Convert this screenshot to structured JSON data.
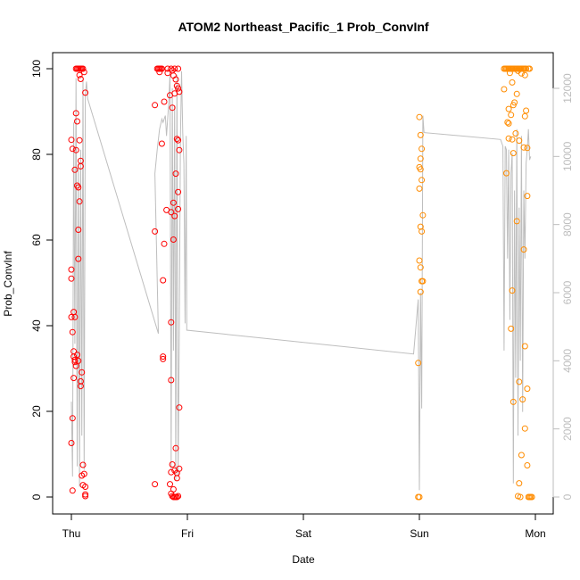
{
  "chart_data": {
    "type": "scatter",
    "title": "ATOM2 Northeast_Pacific_1 Prob_ConvInf",
    "xlabel": "Date",
    "ylabel": "Prob_ConvInf",
    "x_ticks": [
      "Thu",
      "Fri",
      "Sat",
      "Sun",
      "Mon"
    ],
    "ylim": [
      0,
      100
    ],
    "yticks": [
      0,
      20,
      40,
      60,
      80,
      100
    ],
    "y2lim": [
      0,
      12500
    ],
    "y2ticks": [
      0,
      2000,
      4000,
      6000,
      8000,
      10000,
      12000
    ],
    "grid": false,
    "colors": {
      "red": "#ff0000",
      "orange": "#ff8c00",
      "gray_line": "#bebebe"
    },
    "series": [
      {
        "color": "red",
        "points": [
          [
            0.0,
            83.4
          ],
          [
            0.01,
            81.3
          ],
          [
            0.0,
            53.1
          ],
          [
            0.0,
            51.0
          ],
          [
            0.0,
            42.0
          ],
          [
            0.01,
            38.5
          ],
          [
            0.02,
            43.2
          ],
          [
            0.03,
            42.0
          ],
          [
            0.02,
            34.0
          ],
          [
            0.02,
            32.8
          ],
          [
            0.03,
            32.0
          ],
          [
            0.03,
            31.5
          ],
          [
            0.04,
            30.6
          ],
          [
            0.05,
            33.2
          ],
          [
            0.06,
            31.8
          ],
          [
            0.02,
            27.8
          ],
          [
            0.01,
            18.4
          ],
          [
            0.0,
            12.6
          ],
          [
            0.01,
            1.5
          ],
          [
            0.03,
            76.4
          ],
          [
            0.04,
            81.0
          ],
          [
            0.04,
            89.6
          ],
          [
            0.05,
            87.7
          ],
          [
            0.05,
            72.7
          ],
          [
            0.06,
            72.3
          ],
          [
            0.06,
            62.4
          ],
          [
            0.06,
            55.6
          ],
          [
            0.07,
            69.0
          ],
          [
            0.07,
            83.3
          ],
          [
            0.08,
            77.2
          ],
          [
            0.08,
            78.5
          ],
          [
            0.09,
            29.1
          ],
          [
            0.08,
            27.0
          ],
          [
            0.08,
            25.9
          ],
          [
            0.1,
            7.5
          ],
          [
            0.11,
            5.4
          ],
          [
            0.09,
            5.0
          ],
          [
            0.1,
            2.8
          ],
          [
            0.12,
            2.4
          ],
          [
            0.12,
            0.6
          ],
          [
            0.12,
            0.2
          ],
          [
            0.04,
            100
          ],
          [
            0.05,
            100
          ],
          [
            0.06,
            100
          ],
          [
            0.07,
            100
          ],
          [
            0.08,
            100
          ],
          [
            0.09,
            100
          ],
          [
            0.1,
            100
          ],
          [
            0.07,
            98.5
          ],
          [
            0.08,
            97.6
          ],
          [
            0.11,
            99.2
          ],
          [
            0.12,
            94.4
          ],
          [
            0.74,
            100
          ],
          [
            0.75,
            100
          ],
          [
            0.76,
            100
          ],
          [
            0.77,
            100
          ],
          [
            0.78,
            100
          ],
          [
            0.83,
            100
          ],
          [
            0.86,
            100
          ],
          [
            0.89,
            100
          ],
          [
            0.92,
            100
          ],
          [
            0.76,
            99.2
          ],
          [
            0.83,
            99.0
          ],
          [
            0.87,
            99.6
          ],
          [
            0.88,
            98.4
          ],
          [
            0.9,
            97.5
          ],
          [
            0.91,
            96.0
          ],
          [
            0.92,
            95.4
          ],
          [
            0.93,
            94.6
          ],
          [
            0.85,
            93.8
          ],
          [
            0.89,
            94.2
          ],
          [
            0.72,
            91.5
          ],
          [
            0.8,
            92.3
          ],
          [
            0.87,
            90.9
          ],
          [
            0.78,
            82.5
          ],
          [
            0.91,
            83.6
          ],
          [
            0.92,
            83.3
          ],
          [
            0.93,
            81.0
          ],
          [
            0.9,
            75.5
          ],
          [
            0.92,
            71.2
          ],
          [
            0.88,
            68.7
          ],
          [
            0.86,
            66.5
          ],
          [
            0.82,
            67.0
          ],
          [
            0.89,
            65.6
          ],
          [
            0.92,
            67.2
          ],
          [
            0.72,
            62.0
          ],
          [
            0.8,
            59.1
          ],
          [
            0.88,
            60.1
          ],
          [
            0.79,
            50.6
          ],
          [
            0.86,
            40.8
          ],
          [
            0.79,
            32.8
          ],
          [
            0.79,
            32.2
          ],
          [
            0.86,
            27.3
          ],
          [
            0.93,
            20.9
          ],
          [
            0.9,
            11.4
          ],
          [
            0.87,
            7.6
          ],
          [
            0.93,
            6.6
          ],
          [
            0.89,
            6.2
          ],
          [
            0.86,
            5.8
          ],
          [
            0.91,
            5.6
          ],
          [
            0.91,
            4.4
          ],
          [
            0.72,
            3.0
          ],
          [
            0.85,
            3.0
          ],
          [
            0.88,
            1.8
          ],
          [
            0.86,
            0.8
          ],
          [
            0.87,
            0.2
          ],
          [
            0.88,
            0.0
          ],
          [
            0.89,
            0.0
          ],
          [
            0.9,
            0.0
          ],
          [
            0.91,
            0.0
          ],
          [
            0.92,
            0.2
          ]
        ]
      },
      {
        "color": "orange",
        "points": [
          [
            3.0,
            88.7
          ],
          [
            3.01,
            84.5
          ],
          [
            3.02,
            81.3
          ],
          [
            3.01,
            79.0
          ],
          [
            3.0,
            77.0
          ],
          [
            3.01,
            76.5
          ],
          [
            3.02,
            74.0
          ],
          [
            3.0,
            72.0
          ],
          [
            3.03,
            65.8
          ],
          [
            3.01,
            63.1
          ],
          [
            3.02,
            62.0
          ],
          [
            3.0,
            55.2
          ],
          [
            3.01,
            53.6
          ],
          [
            3.02,
            50.4
          ],
          [
            3.03,
            50.4
          ],
          [
            3.01,
            47.9
          ],
          [
            2.99,
            31.3
          ],
          [
            2.99,
            0.0
          ],
          [
            3.0,
            0.0
          ],
          [
            3.73,
            100
          ],
          [
            3.74,
            100
          ],
          [
            3.75,
            100
          ],
          [
            3.76,
            100
          ],
          [
            3.77,
            100
          ],
          [
            3.78,
            100
          ],
          [
            3.79,
            100
          ],
          [
            3.8,
            100
          ],
          [
            3.81,
            100
          ],
          [
            3.82,
            100
          ],
          [
            3.83,
            100
          ],
          [
            3.84,
            100
          ],
          [
            3.85,
            100
          ],
          [
            3.86,
            100
          ],
          [
            3.87,
            100
          ],
          [
            3.88,
            100
          ],
          [
            3.89,
            100
          ],
          [
            3.9,
            100
          ],
          [
            3.91,
            100
          ],
          [
            3.92,
            100
          ],
          [
            3.94,
            100
          ],
          [
            3.95,
            100
          ],
          [
            3.78,
            99.0
          ],
          [
            3.85,
            99.5
          ],
          [
            3.88,
            98.9
          ],
          [
            3.91,
            98.5
          ],
          [
            3.73,
            95.2
          ],
          [
            3.8,
            96.8
          ],
          [
            3.84,
            94.1
          ],
          [
            3.82,
            92.1
          ],
          [
            3.81,
            91.5
          ],
          [
            3.77,
            90.6
          ],
          [
            3.79,
            89.2
          ],
          [
            3.91,
            88.9
          ],
          [
            3.92,
            90.2
          ],
          [
            3.76,
            87.5
          ],
          [
            3.77,
            87.2
          ],
          [
            3.83,
            84.9
          ],
          [
            3.77,
            83.7
          ],
          [
            3.8,
            83.5
          ],
          [
            3.86,
            83.2
          ],
          [
            3.9,
            81.6
          ],
          [
            3.93,
            81.5
          ],
          [
            3.81,
            80.3
          ],
          [
            3.75,
            75.6
          ],
          [
            3.93,
            70.3
          ],
          [
            3.84,
            64.4
          ],
          [
            3.9,
            57.8
          ],
          [
            3.8,
            48.2
          ],
          [
            3.79,
            39.3
          ],
          [
            3.91,
            35.2
          ],
          [
            3.86,
            26.9
          ],
          [
            3.93,
            25.3
          ],
          [
            3.89,
            22.8
          ],
          [
            3.81,
            22.2
          ],
          [
            3.91,
            16.0
          ],
          [
            3.88,
            9.8
          ],
          [
            3.93,
            7.4
          ],
          [
            3.86,
            3.2
          ],
          [
            3.85,
            0.2
          ],
          [
            3.87,
            0.0
          ],
          [
            3.94,
            0.0
          ],
          [
            3.95,
            0.0
          ],
          [
            3.96,
            0.0
          ],
          [
            3.97,
            0.0
          ]
        ]
      }
    ],
    "secondary_line": {
      "color": "gray_line",
      "points": [
        [
          0.0,
          2800
        ],
        [
          0.01,
          600
        ],
        [
          0.02,
          11000
        ],
        [
          0.03,
          4500
        ],
        [
          0.04,
          12300
        ],
        [
          0.05,
          900
        ],
        [
          0.06,
          9800
        ],
        [
          0.07,
          300
        ],
        [
          0.08,
          10200
        ],
        [
          0.09,
          1800
        ],
        [
          0.1,
          12300
        ],
        [
          0.11,
          800
        ],
        [
          0.12,
          11800
        ],
        [
          0.13,
          12200
        ],
        [
          0.14,
          11700
        ],
        [
          0.75,
          4800
        ],
        [
          0.72,
          9500
        ],
        [
          0.74,
          10200
        ],
        [
          0.76,
          10800
        ],
        [
          0.78,
          11100
        ],
        [
          0.79,
          11000
        ],
        [
          0.8,
          11100
        ],
        [
          0.81,
          11200
        ],
        [
          0.82,
          10600
        ],
        [
          0.83,
          11100
        ],
        [
          0.84,
          11600
        ],
        [
          0.85,
          12400
        ],
        [
          0.86,
          800
        ],
        [
          0.87,
          12000
        ],
        [
          0.88,
          4300
        ],
        [
          0.89,
          11500
        ],
        [
          0.9,
          500
        ],
        [
          0.91,
          12400
        ],
        [
          0.92,
          600
        ],
        [
          0.93,
          4800
        ],
        [
          0.94,
          10500
        ],
        [
          0.95,
          12500
        ],
        [
          0.96,
          10700
        ],
        [
          0.97,
          9800
        ],
        [
          0.98,
          5100
        ],
        [
          0.99,
          10600
        ],
        [
          0.995,
          4900
        ],
        [
          2.95,
          4200
        ],
        [
          2.97,
          5000
        ],
        [
          2.99,
          5800
        ],
        [
          3.0,
          200
        ],
        [
          3.01,
          6000
        ],
        [
          3.02,
          2600
        ],
        [
          3.03,
          11200
        ],
        [
          3.04,
          10700
        ],
        [
          3.7,
          10500
        ],
        [
          3.72,
          10300
        ],
        [
          3.73,
          4300
        ],
        [
          3.74,
          10300
        ],
        [
          3.75,
          10200
        ],
        [
          3.76,
          7000
        ],
        [
          3.77,
          10200
        ],
        [
          3.78,
          5200
        ],
        [
          3.79,
          9500
        ],
        [
          3.8,
          10100
        ],
        [
          3.81,
          400
        ],
        [
          3.82,
          9000
        ],
        [
          3.83,
          3500
        ],
        [
          3.84,
          10800
        ],
        [
          3.85,
          1800
        ],
        [
          3.86,
          8500
        ],
        [
          3.87,
          4000
        ],
        [
          3.88,
          10600
        ],
        [
          3.89,
          2500
        ],
        [
          3.9,
          9000
        ],
        [
          3.91,
          7000
        ],
        [
          3.92,
          9800
        ],
        [
          3.93,
          10200
        ],
        [
          3.94,
          10800
        ],
        [
          3.95,
          9900
        ],
        [
          3.96,
          10000
        ]
      ]
    },
    "line_path_order_note": ""
  }
}
